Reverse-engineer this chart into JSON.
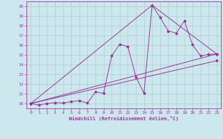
{
  "xlabel": "Windchill (Refroidissement éolien,°C)",
  "bg_color": "#cce8ee",
  "grid_color": "#aacccc",
  "line_color": "#993399",
  "xlim": [
    -0.5,
    23.5
  ],
  "ylim": [
    9.5,
    20.5
  ],
  "xticks": [
    0,
    1,
    2,
    3,
    4,
    5,
    6,
    7,
    8,
    9,
    10,
    11,
    12,
    13,
    14,
    15,
    16,
    17,
    18,
    19,
    20,
    21,
    22,
    23
  ],
  "yticks": [
    10,
    11,
    12,
    13,
    14,
    15,
    16,
    17,
    18,
    19,
    20
  ],
  "series1": [
    [
      0,
      10
    ],
    [
      1,
      9.85
    ],
    [
      2,
      10.0
    ],
    [
      3,
      10.1
    ],
    [
      4,
      10.05
    ],
    [
      5,
      10.2
    ],
    [
      6,
      10.3
    ],
    [
      7,
      10.05
    ],
    [
      8,
      11.2
    ],
    [
      9,
      11.05
    ],
    [
      10,
      14.9
    ],
    [
      11,
      16.1
    ],
    [
      12,
      15.85
    ],
    [
      13,
      12.75
    ],
    [
      14,
      11.05
    ],
    [
      15,
      20.1
    ],
    [
      16,
      18.85
    ],
    [
      17,
      17.45
    ],
    [
      18,
      17.25
    ],
    [
      19,
      18.5
    ],
    [
      20,
      16.05
    ],
    [
      21,
      14.9
    ],
    [
      22,
      15.05
    ],
    [
      23,
      15.1
    ]
  ],
  "series2": [
    [
      0,
      10
    ],
    [
      23,
      15.1
    ]
  ],
  "series3": [
    [
      0,
      10
    ],
    [
      15,
      20.1
    ],
    [
      23,
      15.1
    ]
  ],
  "series4": [
    [
      0,
      10
    ],
    [
      23,
      14.4
    ]
  ]
}
